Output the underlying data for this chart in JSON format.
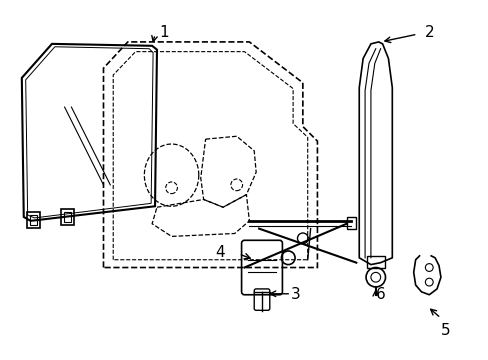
{
  "bg_color": "#ffffff",
  "line_color": "#000000",
  "line_width": 1.0,
  "label_fontsize": 11,
  "figsize": [
    4.89,
    3.6
  ],
  "dpi": 100
}
